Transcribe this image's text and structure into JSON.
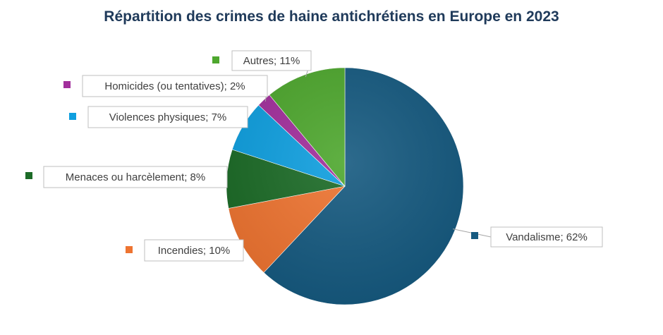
{
  "chart_data": {
    "type": "pie",
    "title": "Répartition des crimes de haine antichrétiens en Europe en 2023",
    "slices": [
      {
        "name": "Vandalisme",
        "value": 62,
        "label": "Vandalisme; 62%",
        "color": "#165a80"
      },
      {
        "name": "Incendies",
        "value": 10,
        "label": "Incendies; 10%",
        "color": "#ee7431"
      },
      {
        "name": "Menaces ou harcèlement",
        "value": 8,
        "label": "Menaces ou harcèlement; 8%",
        "color": "#1c6b27"
      },
      {
        "name": "Violences physiques",
        "value": 7,
        "label": "Violences physiques; 7%",
        "color": "#0f9fdf"
      },
      {
        "name": "Homicides (ou tentatives)",
        "value": 2,
        "label": "Homicides (ou tentatives); 2%",
        "color": "#a22f9c"
      },
      {
        "name": "Autres",
        "value": 11,
        "label": "Autres; 11%",
        "color": "#4ea72e"
      }
    ],
    "start_at": "top",
    "direction": "clockwise",
    "legend": "none",
    "data_labels": "outside with leader lines"
  }
}
